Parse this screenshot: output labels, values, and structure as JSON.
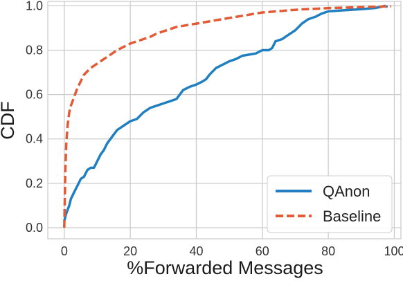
{
  "chart_data": {
    "type": "line",
    "xlabel": "%Forwarded Messages",
    "ylabel": "CDF",
    "xlim": [
      -5,
      102
    ],
    "ylim": [
      -0.05,
      1.02
    ],
    "xticks": [
      0,
      20,
      40,
      60,
      80,
      100
    ],
    "yticks": [
      0.0,
      0.2,
      0.4,
      0.6,
      0.8,
      1.0
    ],
    "xtick_labels": [
      "0",
      "20",
      "40",
      "60",
      "80",
      "100"
    ],
    "ytick_labels": [
      "0.0",
      "0.2",
      "0.4",
      "0.6",
      "0.8",
      "1.0"
    ],
    "grid": true,
    "legend_position": "bottom-right",
    "series": [
      {
        "name": "QAnon",
        "color": "#1f7fc0",
        "style": "solid",
        "x": [
          0,
          0.5,
          1,
          1.5,
          2,
          3,
          4,
          5,
          6,
          7,
          8,
          9,
          10,
          11,
          12,
          13,
          14,
          15,
          16,
          17,
          18,
          19,
          20,
          22,
          24,
          26,
          28,
          30,
          32,
          34,
          35,
          36,
          38,
          40,
          42,
          43,
          44,
          46,
          48,
          50,
          52,
          54,
          56,
          58,
          60,
          62,
          63,
          64,
          66,
          68,
          69,
          70,
          72,
          74,
          76,
          78,
          80,
          85,
          90,
          94,
          96,
          97,
          98
        ],
        "y": [
          0.03,
          0.06,
          0.08,
          0.1,
          0.13,
          0.16,
          0.19,
          0.22,
          0.23,
          0.26,
          0.27,
          0.27,
          0.3,
          0.33,
          0.35,
          0.38,
          0.4,
          0.42,
          0.44,
          0.45,
          0.46,
          0.47,
          0.48,
          0.49,
          0.52,
          0.54,
          0.55,
          0.56,
          0.57,
          0.58,
          0.6,
          0.62,
          0.635,
          0.645,
          0.66,
          0.67,
          0.69,
          0.72,
          0.735,
          0.75,
          0.76,
          0.775,
          0.78,
          0.785,
          0.8,
          0.8,
          0.81,
          0.84,
          0.85,
          0.87,
          0.88,
          0.89,
          0.92,
          0.94,
          0.95,
          0.965,
          0.975,
          0.98,
          0.985,
          0.99,
          0.995,
          1.0,
          0.995
        ]
      },
      {
        "name": "Baseline",
        "color": "#e35a34",
        "style": "dashed",
        "x": [
          0,
          0.3,
          0.6,
          1,
          1.5,
          2,
          3,
          4,
          5,
          6,
          8,
          10,
          12,
          14,
          16,
          18,
          20,
          22,
          24,
          26,
          28,
          30,
          32,
          34,
          36,
          38,
          40,
          42,
          44,
          46,
          48,
          50,
          52,
          54,
          56,
          58,
          60,
          62,
          64,
          66,
          68,
          70,
          72,
          75,
          78,
          80,
          85,
          90,
          95,
          99
        ],
        "y": [
          0.0,
          0.25,
          0.38,
          0.46,
          0.52,
          0.55,
          0.59,
          0.63,
          0.66,
          0.69,
          0.72,
          0.74,
          0.76,
          0.78,
          0.8,
          0.815,
          0.83,
          0.84,
          0.85,
          0.86,
          0.875,
          0.885,
          0.895,
          0.905,
          0.91,
          0.915,
          0.92,
          0.925,
          0.93,
          0.935,
          0.94,
          0.945,
          0.95,
          0.955,
          0.96,
          0.965,
          0.97,
          0.972,
          0.975,
          0.977,
          0.98,
          0.982,
          0.984,
          0.986,
          0.988,
          0.99,
          0.992,
          0.994,
          0.996,
          0.998
        ]
      }
    ]
  }
}
